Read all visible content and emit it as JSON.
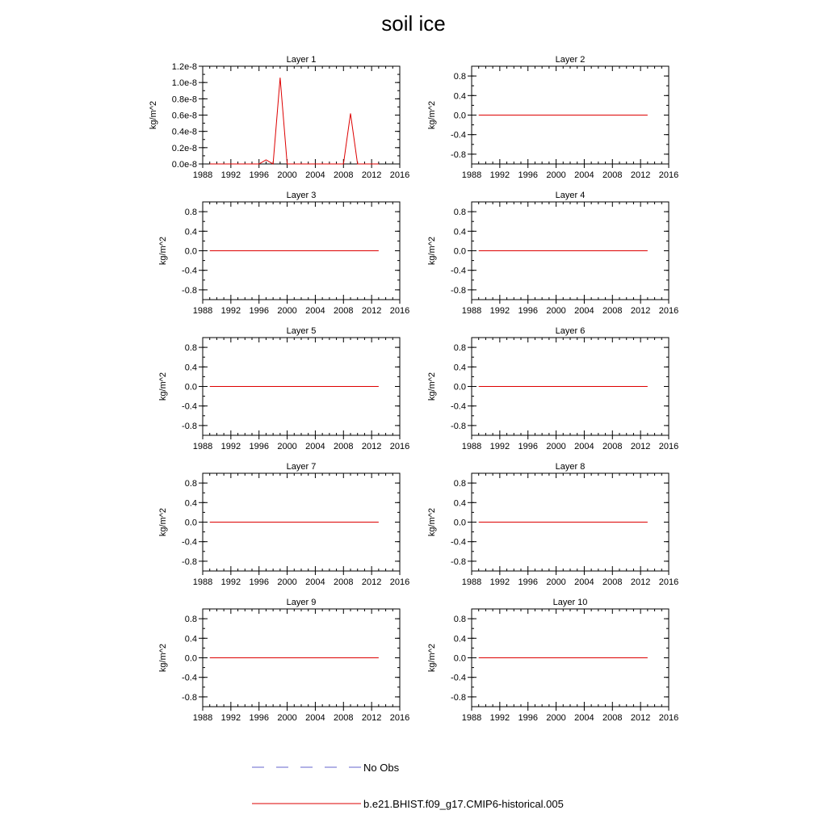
{
  "title": "soil ice",
  "chart_data": [
    {
      "type": "line",
      "title": "Layer 1",
      "ylabel": "kg/m^2",
      "xlim": [
        1988,
        2016
      ],
      "ylim": [
        0,
        1.2e-08
      ],
      "yticks": [
        "0.0e-8",
        "0.2e-8",
        "0.4e-8",
        "0.6e-8",
        "0.8e-8",
        "1.0e-8",
        "1.2e-8"
      ],
      "xticks": [
        "1988",
        "1992",
        "1996",
        "2000",
        "2004",
        "2008",
        "2012",
        "2016"
      ],
      "series": [
        {
          "name": "b.e21.BHIST.f09_g17.CMIP6-historical.005",
          "color": "#dd0000",
          "x": [
            1989,
            1990,
            1991,
            1992,
            1993,
            1994,
            1995,
            1996,
            1997,
            1998,
            1999,
            2000,
            2001,
            2002,
            2003,
            2004,
            2005,
            2006,
            2007,
            2008,
            2009,
            2010,
            2011,
            2012,
            2013
          ],
          "y": [
            0,
            0,
            0,
            0,
            0,
            0,
            0,
            0,
            5e-10,
            0,
            1.06e-08,
            0,
            0,
            0,
            0,
            0,
            0,
            0,
            0,
            0,
            6.2e-09,
            0,
            0,
            0,
            0
          ]
        }
      ]
    },
    {
      "type": "line",
      "title": "Layer 2",
      "ylabel": "kg/m^2",
      "xlim": [
        1988,
        2016
      ],
      "ylim": [
        -1,
        1
      ],
      "yticks": [
        "-0.8",
        "-0.4",
        "0.0",
        "0.4",
        "0.8"
      ],
      "xticks": [
        "1988",
        "1992",
        "1996",
        "2000",
        "2004",
        "2008",
        "2012",
        "2016"
      ],
      "series": [
        {
          "name": "b.e21.BHIST.f09_g17.CMIP6-historical.005",
          "color": "#dd0000",
          "x": [
            1989,
            2013
          ],
          "y": [
            0,
            0
          ]
        }
      ]
    },
    {
      "type": "line",
      "title": "Layer 3",
      "ylabel": "kg/m^2",
      "xlim": [
        1988,
        2016
      ],
      "ylim": [
        -1,
        1
      ],
      "yticks": [
        "-0.8",
        "-0.4",
        "0.0",
        "0.4",
        "0.8"
      ],
      "xticks": [
        "1988",
        "1992",
        "1996",
        "2000",
        "2004",
        "2008",
        "2012",
        "2016"
      ],
      "series": [
        {
          "name": "b.e21.BHIST.f09_g17.CMIP6-historical.005",
          "color": "#dd0000",
          "x": [
            1989,
            2013
          ],
          "y": [
            0,
            0
          ]
        }
      ]
    },
    {
      "type": "line",
      "title": "Layer 4",
      "ylabel": "kg/m^2",
      "xlim": [
        1988,
        2016
      ],
      "ylim": [
        -1,
        1
      ],
      "yticks": [
        "-0.8",
        "-0.4",
        "0.0",
        "0.4",
        "0.8"
      ],
      "xticks": [
        "1988",
        "1992",
        "1996",
        "2000",
        "2004",
        "2008",
        "2012",
        "2016"
      ],
      "series": [
        {
          "name": "b.e21.BHIST.f09_g17.CMIP6-historical.005",
          "color": "#dd0000",
          "x": [
            1989,
            2013
          ],
          "y": [
            0,
            0
          ]
        }
      ]
    },
    {
      "type": "line",
      "title": "Layer 5",
      "ylabel": "kg/m^2",
      "xlim": [
        1988,
        2016
      ],
      "ylim": [
        -1,
        1
      ],
      "yticks": [
        "-0.8",
        "-0.4",
        "0.0",
        "0.4",
        "0.8"
      ],
      "xticks": [
        "1988",
        "1992",
        "1996",
        "2000",
        "2004",
        "2008",
        "2012",
        "2016"
      ],
      "series": [
        {
          "name": "b.e21.BHIST.f09_g17.CMIP6-historical.005",
          "color": "#dd0000",
          "x": [
            1989,
            2013
          ],
          "y": [
            0,
            0
          ]
        }
      ]
    },
    {
      "type": "line",
      "title": "Layer 6",
      "ylabel": "kg/m^2",
      "xlim": [
        1988,
        2016
      ],
      "ylim": [
        -1,
        1
      ],
      "yticks": [
        "-0.8",
        "-0.4",
        "0.0",
        "0.4",
        "0.8"
      ],
      "xticks": [
        "1988",
        "1992",
        "1996",
        "2000",
        "2004",
        "2008",
        "2012",
        "2016"
      ],
      "series": [
        {
          "name": "b.e21.BHIST.f09_g17.CMIP6-historical.005",
          "color": "#dd0000",
          "x": [
            1989,
            2013
          ],
          "y": [
            0,
            0
          ]
        }
      ]
    },
    {
      "type": "line",
      "title": "Layer 7",
      "ylabel": "kg/m^2",
      "xlim": [
        1988,
        2016
      ],
      "ylim": [
        -1,
        1
      ],
      "yticks": [
        "-0.8",
        "-0.4",
        "0.0",
        "0.4",
        "0.8"
      ],
      "xticks": [
        "1988",
        "1992",
        "1996",
        "2000",
        "2004",
        "2008",
        "2012",
        "2016"
      ],
      "series": [
        {
          "name": "b.e21.BHIST.f09_g17.CMIP6-historical.005",
          "color": "#dd0000",
          "x": [
            1989,
            2013
          ],
          "y": [
            0,
            0
          ]
        }
      ]
    },
    {
      "type": "line",
      "title": "Layer 8",
      "ylabel": "kg/m^2",
      "xlim": [
        1988,
        2016
      ],
      "ylim": [
        -1,
        1
      ],
      "yticks": [
        "-0.8",
        "-0.4",
        "0.0",
        "0.4",
        "0.8"
      ],
      "xticks": [
        "1988",
        "1992",
        "1996",
        "2000",
        "2004",
        "2008",
        "2012",
        "2016"
      ],
      "series": [
        {
          "name": "b.e21.BHIST.f09_g17.CMIP6-historical.005",
          "color": "#dd0000",
          "x": [
            1989,
            2013
          ],
          "y": [
            0,
            0
          ]
        }
      ]
    },
    {
      "type": "line",
      "title": "Layer 9",
      "ylabel": "kg/m^2",
      "xlim": [
        1988,
        2016
      ],
      "ylim": [
        -1,
        1
      ],
      "yticks": [
        "-0.8",
        "-0.4",
        "0.0",
        "0.4",
        "0.8"
      ],
      "xticks": [
        "1988",
        "1992",
        "1996",
        "2000",
        "2004",
        "2008",
        "2012",
        "2016"
      ],
      "series": [
        {
          "name": "b.e21.BHIST.f09_g17.CMIP6-historical.005",
          "color": "#dd0000",
          "x": [
            1989,
            2013
          ],
          "y": [
            0,
            0
          ]
        }
      ]
    },
    {
      "type": "line",
      "title": "Layer 10",
      "ylabel": "kg/m^2",
      "xlim": [
        1988,
        2016
      ],
      "ylim": [
        -1,
        1
      ],
      "yticks": [
        "-0.8",
        "-0.4",
        "0.0",
        "0.4",
        "0.8"
      ],
      "xticks": [
        "1988",
        "1992",
        "1996",
        "2000",
        "2004",
        "2008",
        "2012",
        "2016"
      ],
      "series": [
        {
          "name": "b.e21.BHIST.f09_g17.CMIP6-historical.005",
          "color": "#dd0000",
          "x": [
            1989,
            2013
          ],
          "y": [
            0,
            0
          ]
        }
      ]
    }
  ],
  "legend": [
    {
      "label": "No Obs",
      "color": "#6666cc",
      "style": "dashed"
    },
    {
      "label": "b.e21.BHIST.f09_g17.CMIP6-historical.005",
      "color": "#dd0000",
      "style": "solid"
    }
  ]
}
